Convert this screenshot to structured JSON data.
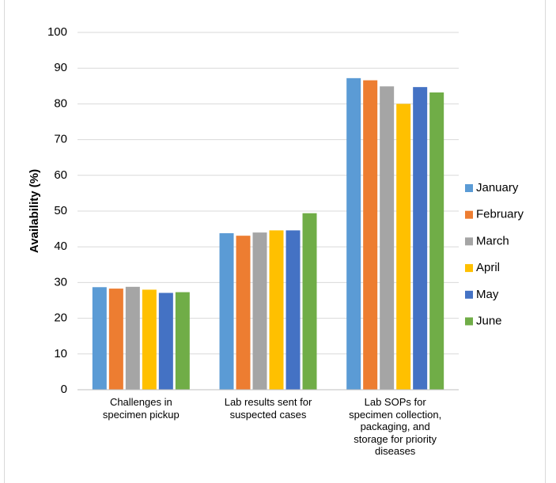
{
  "chart_data": {
    "type": "bar",
    "y_label": "Availability (%)",
    "categories": [
      "Challenges in specimen pickup",
      "Lab results sent for suspected cases",
      "Lab SOPs for specimen collection, packaging, and storage for priority diseases"
    ],
    "series": [
      {
        "name": "January",
        "color": "#5b9bd5",
        "values": [
          28.7,
          43.8,
          87.2
        ]
      },
      {
        "name": "February",
        "color": "#ed7d31",
        "values": [
          28.3,
          43.1,
          86.6
        ]
      },
      {
        "name": "March",
        "color": "#a5a5a5",
        "values": [
          28.8,
          44.0,
          84.9
        ]
      },
      {
        "name": "April",
        "color": "#ffc000",
        "values": [
          28.0,
          44.6,
          80.0
        ]
      },
      {
        "name": "May",
        "color": "#4472c4",
        "values": [
          27.1,
          44.6,
          84.7
        ]
      },
      {
        "name": "June",
        "color": "#70ad47",
        "values": [
          27.3,
          49.4,
          83.2
        ]
      }
    ],
    "ylim": [
      0,
      100
    ],
    "yticks": [
      0,
      10,
      20,
      30,
      40,
      50,
      60,
      70,
      80,
      90,
      100
    ],
    "grid": true,
    "legend": "right"
  }
}
